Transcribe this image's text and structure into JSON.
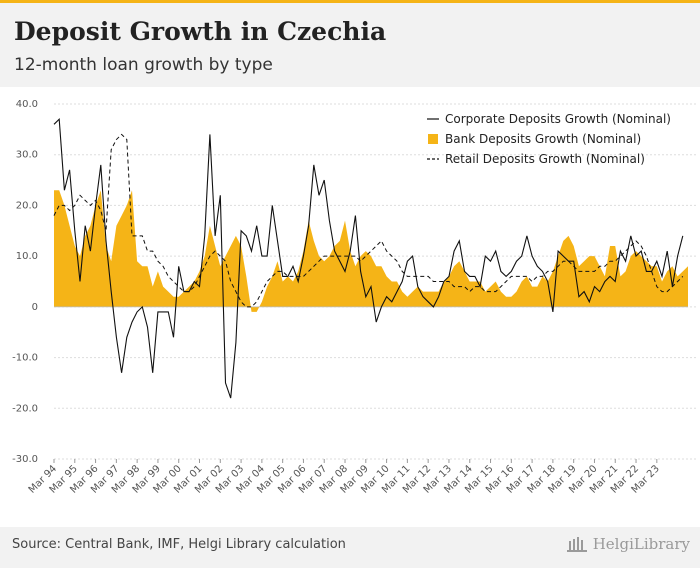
{
  "header": {
    "title": "Deposit Growth in Czechia",
    "subtitle": "12-month loan growth by type"
  },
  "footer": {
    "source": "Source: Central Bank, IMF, Helgi Library calculation",
    "brand": "HelgiLibrary"
  },
  "colors": {
    "accent": "#f5b417",
    "corporate": "#111111",
    "bank": "#f5b417",
    "retail": "#111111"
  },
  "chart_data": {
    "type": "line",
    "ylim": [
      -30,
      40
    ],
    "yticks": [
      40,
      30,
      20,
      10,
      0,
      -10,
      -20,
      -30
    ],
    "ytick_labels": [
      "40.0",
      "30.0",
      "20.0",
      "10.0",
      "0",
      "-10.0",
      "-20.0",
      "-30.0"
    ],
    "grid": "horizontal",
    "legend_position": "top-right",
    "x_tick_labels": [
      "Mar 94",
      "Mar 95",
      "Mar 96",
      "Mar 97",
      "Mar 98",
      "Mar 99",
      "Mar 00",
      "Mar 01",
      "Mar 02",
      "Mar 03",
      "Mar 04",
      "Mar 05",
      "Mar 06",
      "Mar 07",
      "Mar 08",
      "Mar 09",
      "Mar 10",
      "Mar 11",
      "Mar 12",
      "Mar 13",
      "Mar 14",
      "Mar 15",
      "Mar 16",
      "Mar 17",
      "Mar 18",
      "Mar 19",
      "Mar 20",
      "Mar 21",
      "Mar 22",
      "Mar 23"
    ],
    "quarters_per_year": 4,
    "series": [
      {
        "name": "Corporate Deposits Growth (Nominal)",
        "style": "solid",
        "values": [
          36,
          37,
          23,
          27,
          15,
          5,
          16,
          11,
          20,
          28,
          13,
          3,
          -6,
          -13,
          -6,
          -3,
          -1,
          0,
          -4,
          -13,
          -1,
          -1,
          -1,
          -6,
          8,
          3,
          3,
          5,
          4,
          14,
          34,
          14,
          22,
          -15,
          -18,
          -7,
          15,
          14,
          11,
          16,
          10,
          10,
          20,
          13,
          6,
          6,
          8,
          5,
          10,
          16,
          28,
          22,
          25,
          17,
          11,
          9,
          7,
          11,
          18,
          7,
          2,
          4,
          -3,
          0,
          2,
          1,
          3,
          5,
          9,
          10,
          4,
          2,
          1,
          0,
          2,
          5,
          6,
          11,
          13,
          7,
          6,
          6,
          4,
          10,
          9,
          11,
          7,
          6,
          7,
          9,
          10,
          14,
          10,
          8,
          7,
          5,
          -1,
          11,
          10,
          9,
          9,
          2,
          3,
          1,
          4,
          3,
          5,
          6,
          5,
          11,
          9,
          14,
          10,
          11,
          7,
          7,
          9,
          6,
          11,
          4,
          10,
          14
        ]
      },
      {
        "name": "Bank Deposits Growth (Nominal)",
        "style": "area",
        "values": [
          23,
          23,
          20,
          16,
          12,
          10,
          14,
          16,
          20,
          23,
          12,
          9,
          16,
          18,
          20,
          23,
          9,
          8,
          8,
          4,
          7,
          4,
          3,
          2,
          2,
          3,
          4,
          5,
          7,
          10,
          16,
          12,
          8,
          10,
          12,
          14,
          12,
          6,
          -1,
          -1,
          1,
          4,
          6,
          9,
          5,
          6,
          5,
          7,
          11,
          17,
          13,
          10,
          9,
          10,
          12,
          13,
          17,
          11,
          8,
          10,
          11,
          10,
          8,
          8,
          6,
          5,
          5,
          3,
          2,
          3,
          4,
          3,
          3,
          3,
          3,
          5,
          6,
          8,
          9,
          7,
          5,
          5,
          5,
          3,
          4,
          5,
          3,
          2,
          2,
          3,
          5,
          6,
          4,
          4,
          6,
          5,
          7,
          10,
          13,
          14,
          12,
          8,
          9,
          10,
          10,
          8,
          6,
          12,
          12,
          6,
          7,
          10,
          11,
          10,
          9,
          8,
          8,
          5,
          7,
          8,
          6,
          7,
          8
        ]
      },
      {
        "name": "Retail Deposits Growth (Nominal)",
        "style": "dashed",
        "values": [
          18,
          20,
          20,
          19,
          20,
          22,
          21,
          20,
          21,
          19,
          15,
          31,
          33,
          34,
          33,
          14,
          14,
          14,
          11,
          11,
          9,
          8,
          6,
          5,
          4,
          3,
          3,
          4,
          6,
          8,
          10,
          11,
          10,
          9,
          5,
          3,
          1,
          0,
          0,
          1,
          3,
          5,
          6,
          7,
          7,
          6,
          6,
          6,
          6,
          7,
          8,
          9,
          10,
          10,
          10,
          10,
          10,
          10,
          10,
          9,
          10,
          11,
          12,
          13,
          11,
          10,
          9,
          7,
          6,
          6,
          6,
          6,
          6,
          5,
          5,
          5,
          5,
          4,
          4,
          4,
          3,
          4,
          4,
          3,
          3,
          3,
          4,
          5,
          6,
          6,
          6,
          6,
          5,
          6,
          6,
          7,
          7,
          8,
          9,
          9,
          8,
          7,
          7,
          7,
          7,
          8,
          8,
          9,
          9,
          10,
          11,
          12,
          13,
          12,
          10,
          7,
          4,
          3,
          3,
          4,
          5,
          6
        ]
      }
    ]
  }
}
